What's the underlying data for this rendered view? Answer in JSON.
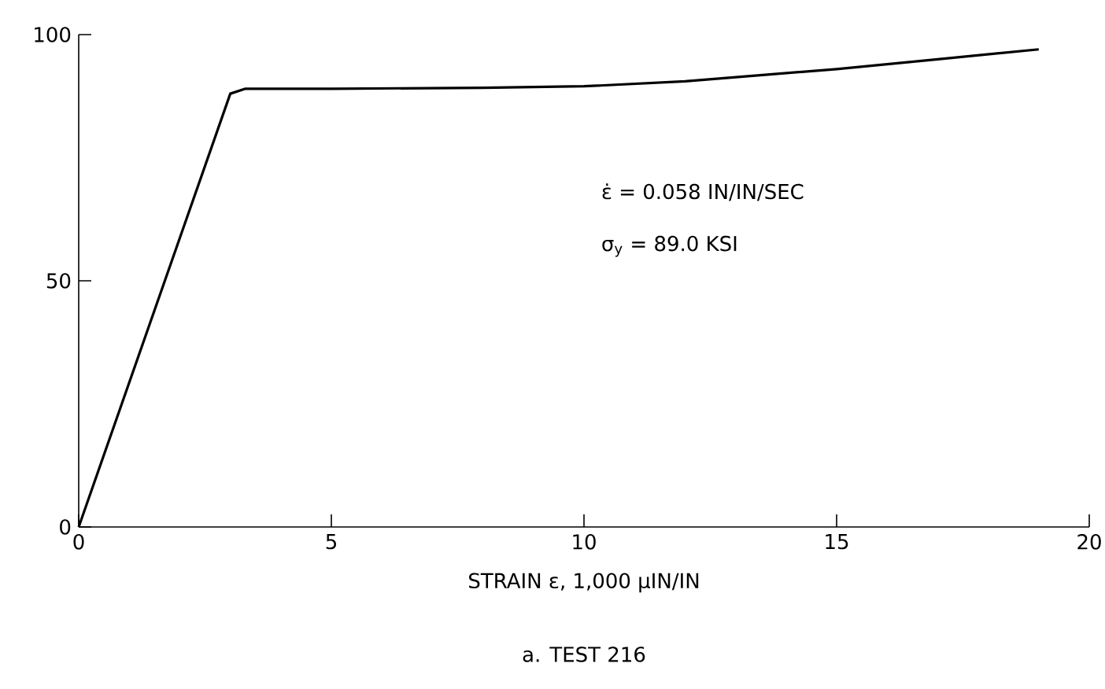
{
  "chart_data": {
    "type": "line",
    "title": "a. TEST 216",
    "xlabel": "STRAIN ε, 1,000 μIN/IN",
    "annotations": [
      "ε̇ = 0.058 IN/IN/SEC",
      "σ$_{y}$ = 89.0 KSI"
    ],
    "x": [
      0,
      3,
      3.3,
      5,
      8,
      10,
      12,
      15,
      17,
      19
    ],
    "series": [
      {
        "color": "#000000",
        "values": [
          0,
          88,
          89,
          89,
          89.2,
          89.5,
          90.5,
          93,
          95,
          97
        ]
      }
    ],
    "xlim": [
      0,
      20
    ],
    "ylim": [
      0,
      100
    ],
    "xticks": [
      0,
      5,
      10,
      15,
      20
    ],
    "yticks": [
      0,
      50,
      100
    ]
  }
}
